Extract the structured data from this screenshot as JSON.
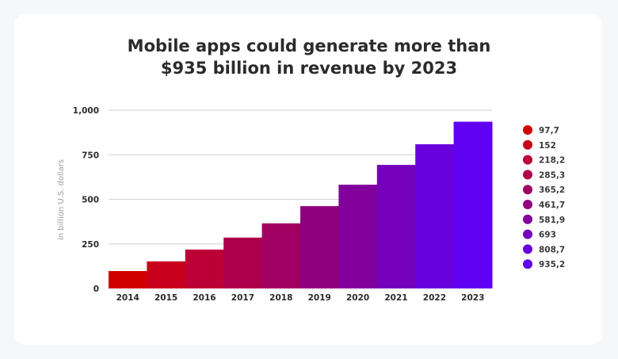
{
  "chart_data": {
    "type": "bar",
    "title": "Mobile apps could generate more than $935 billion in revenue by 2023",
    "title_lines": [
      "Mobile apps could generate more than",
      "$935 billion in revenue by 2023"
    ],
    "xlabel": "",
    "ylabel": "in billion U.S. dollars",
    "ylim": [
      0,
      1000
    ],
    "yticks": [
      0,
      250,
      500,
      750,
      1000
    ],
    "ytick_labels": [
      "0",
      "250",
      "500",
      "750",
      "1,000"
    ],
    "grid": true,
    "legend_placement": "right",
    "categories": [
      "2014",
      "2015",
      "2016",
      "2017",
      "2018",
      "2019",
      "2020",
      "2021",
      "2022",
      "2023"
    ],
    "values": [
      97.7,
      152,
      218.2,
      285.3,
      365.2,
      461.7,
      581.9,
      693,
      808.7,
      935.2
    ],
    "value_labels": [
      "97,7",
      "152",
      "218,2",
      "285,3",
      "365,2",
      "461,7",
      "581,9",
      "693",
      "808,7",
      "935,2"
    ],
    "colors": [
      "#d10000",
      "#c8001c",
      "#bc0036",
      "#ad004c",
      "#a00062",
      "#90007e",
      "#82009c",
      "#7400bc",
      "#6800dc",
      "#6000f2"
    ]
  }
}
